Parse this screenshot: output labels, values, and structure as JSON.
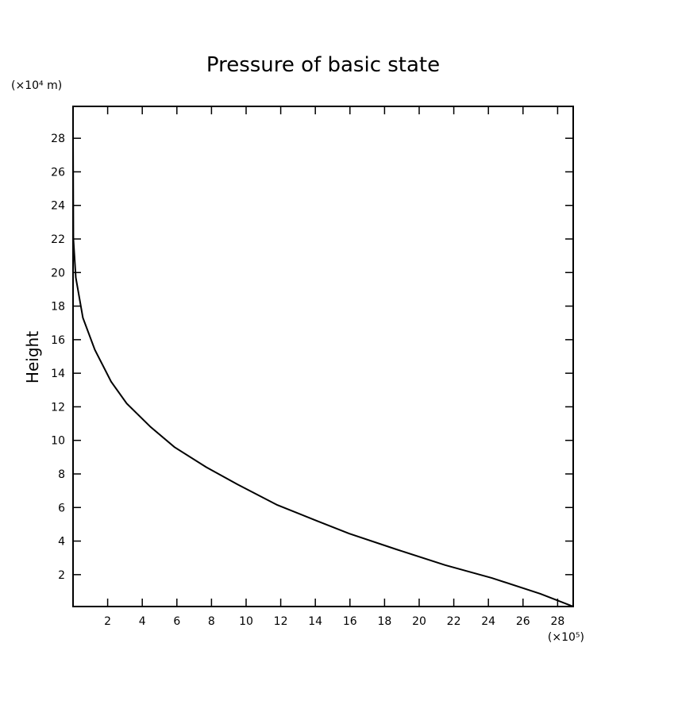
{
  "chart_data": {
    "type": "line",
    "title": "Pressure of basic state",
    "y_label": "Height",
    "y_unit": "(×10⁴ m)",
    "x_unit": "(×10⁵)",
    "x": [
      28.9,
      27.0,
      24.2,
      21.5,
      18.7,
      15.95,
      14.1,
      11.8,
      9.5,
      7.7,
      5.86,
      4.48,
      3.1,
      2.2,
      1.26,
      0.57,
      0.16,
      0.02,
      0.0
    ],
    "series": [
      {
        "name": "Pressure",
        "color": "#000000",
        "values": [
          0.1,
          0.86,
          1.8,
          2.57,
          3.5,
          4.45,
          5.2,
          6.15,
          7.38,
          8.4,
          9.6,
          10.8,
          12.2,
          13.5,
          15.4,
          17.3,
          19.7,
          22.0,
          28.2
        ]
      }
    ],
    "xlim": [
      0,
      28.9
    ],
    "ylim": [
      0.1,
      29.9
    ],
    "xticks": [
      2,
      4,
      6,
      8,
      10,
      12,
      14,
      16,
      18,
      20,
      22,
      24,
      26,
      28
    ],
    "yticks": [
      2,
      4,
      6,
      8,
      10,
      12,
      14,
      16,
      18,
      20,
      22,
      24,
      26,
      28
    ],
    "grid": false
  }
}
